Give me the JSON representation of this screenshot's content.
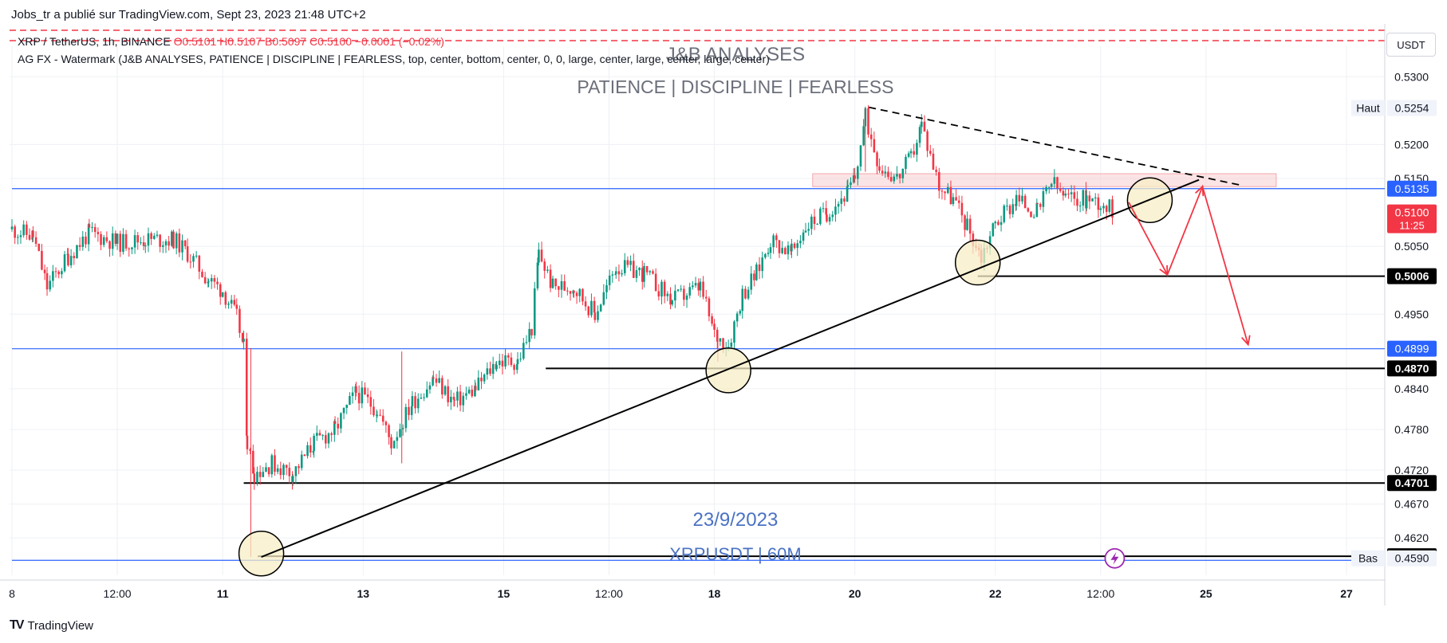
{
  "header": {
    "published": "Jobs_tr a publié sur TradingView.com, Sept 23, 2023 21:48 UTC+2",
    "symbol_line": "XRP / TetherUS, 1h, BINANCE",
    "ohlc": "O0.5101  H0.5107  B0.5097  C0.5100  −0.0001 (−0.02%)",
    "indicator_line": "AG FX - Watermark (J&B ANALYSES, PATIENCE  |  DISCIPLINE  |  FEARLESS, top, center, bottom, center, 0, 0, large, center, large, center, large, center)",
    "currency_button": "USDT"
  },
  "watermark": {
    "title": "J&B ANALYSES",
    "subtitle": "PATIENCE   |   DISCIPLINE   |   FEARLESS",
    "date": "23/9/2023",
    "pair": "XRPUSDT | 60M"
  },
  "footer": {
    "brand": "TradingView",
    "logo": "tradingview-logo-icon"
  },
  "colors": {
    "up": "#089981",
    "down": "#f23645",
    "blue_line": "#2962ff",
    "zone": "#f8cdd0",
    "circle": "#f7eec5",
    "arrow": "#f23645"
  },
  "chart_data": {
    "type": "candlestick",
    "symbol": "XRP / TetherUS",
    "timeframe": "1h",
    "exchange": "BINANCE",
    "ylim": [
      0.4565,
      0.5345
    ],
    "y_ticks": [
      0.53,
      0.52,
      0.515,
      0.505,
      0.495,
      0.484,
      0.478,
      0.472,
      0.467,
      0.462
    ],
    "x_ticks": [
      {
        "label": "8",
        "d": 8.0
      },
      {
        "label": "12:00",
        "d": 9.5
      },
      {
        "label": "11",
        "d": 11.0
      },
      {
        "label": "13",
        "d": 13.0
      },
      {
        "label": "15",
        "d": 15.0
      },
      {
        "label": "12:00",
        "d": 16.5
      },
      {
        "label": "18",
        "d": 18.0
      },
      {
        "label": "20",
        "d": 20.0
      },
      {
        "label": "22",
        "d": 22.0
      },
      {
        "label": "12:00",
        "d": 23.5
      },
      {
        "label": "25",
        "d": 25.0
      },
      {
        "label": "27",
        "d": 27.0
      }
    ],
    "path": [
      [
        8.0,
        0.5075
      ],
      [
        8.3,
        0.5065
      ],
      [
        8.5,
        0.499
      ],
      [
        8.8,
        0.5035
      ],
      [
        9.1,
        0.507
      ],
      [
        9.5,
        0.5055
      ],
      [
        9.9,
        0.506
      ],
      [
        10.3,
        0.506
      ],
      [
        10.5,
        0.504
      ],
      [
        10.8,
        0.5
      ],
      [
        11.0,
        0.4985
      ],
      [
        11.2,
        0.4945
      ],
      [
        11.3,
        0.49
      ],
      [
        11.35,
        0.476
      ],
      [
        11.45,
        0.4715
      ],
      [
        11.7,
        0.473
      ],
      [
        12.0,
        0.4715
      ],
      [
        12.3,
        0.476
      ],
      [
        12.6,
        0.478
      ],
      [
        12.9,
        0.4835
      ],
      [
        13.2,
        0.481
      ],
      [
        13.4,
        0.476
      ],
      [
        13.7,
        0.482
      ],
      [
        14.0,
        0.4855
      ],
      [
        14.3,
        0.482
      ],
      [
        14.6,
        0.484
      ],
      [
        14.9,
        0.488
      ],
      [
        15.2,
        0.488
      ],
      [
        15.4,
        0.493
      ],
      [
        15.5,
        0.504
      ],
      [
        15.7,
        0.499
      ],
      [
        16.0,
        0.499
      ],
      [
        16.3,
        0.495
      ],
      [
        16.6,
        0.502
      ],
      [
        17.0,
        0.501
      ],
      [
        17.4,
        0.497
      ],
      [
        17.8,
        0.499
      ],
      [
        18.0,
        0.492
      ],
      [
        18.2,
        0.4905
      ],
      [
        18.4,
        0.498
      ],
      [
        18.6,
        0.501
      ],
      [
        18.8,
        0.506
      ],
      [
        19.1,
        0.504
      ],
      [
        19.3,
        0.508
      ],
      [
        19.6,
        0.51
      ],
      [
        19.9,
        0.513
      ],
      [
        20.0,
        0.515
      ],
      [
        20.15,
        0.524
      ],
      [
        20.35,
        0.517
      ],
      [
        20.6,
        0.515
      ],
      [
        20.8,
        0.518
      ],
      [
        20.95,
        0.523
      ],
      [
        21.2,
        0.514
      ],
      [
        21.4,
        0.512
      ],
      [
        21.6,
        0.508
      ],
      [
        21.8,
        0.5035
      ],
      [
        22.0,
        0.5085
      ],
      [
        22.3,
        0.512
      ],
      [
        22.6,
        0.51
      ],
      [
        22.8,
        0.5145
      ],
      [
        23.0,
        0.512
      ],
      [
        23.3,
        0.512
      ],
      [
        23.5,
        0.5115
      ],
      [
        23.7,
        0.51
      ]
    ],
    "ref_candle": {
      "open": 0.5101,
      "high": 0.5107,
      "low": 0.5097,
      "close": 0.51
    },
    "price_labels": [
      {
        "value": 0.5254,
        "text": "0.5254",
        "tag": "Haut",
        "style": "high"
      },
      {
        "value": 0.5135,
        "text": "0.5135",
        "style": "blue"
      },
      {
        "value": 0.51,
        "text": "0.5100",
        "time": "11:25",
        "style": "last"
      },
      {
        "value": 0.5006,
        "text": "0.5006",
        "style": "black"
      },
      {
        "value": 0.4899,
        "text": "0.4899",
        "style": "blue"
      },
      {
        "value": 0.487,
        "text": "0.4870",
        "style": "black"
      },
      {
        "value": 0.4701,
        "text": "0.4701",
        "style": "black"
      },
      {
        "value": 0.4593,
        "text": "0.4593",
        "style": "black"
      },
      {
        "value": 0.459,
        "text": "0.4590",
        "tag": "Bas",
        "style": "low"
      }
    ],
    "horizontal_lines": [
      {
        "value": 0.5135,
        "from": 8.0,
        "color": "blue"
      },
      {
        "value": 0.4899,
        "from": 8.0,
        "color": "blue"
      },
      {
        "value": 0.4587,
        "from": 8.0,
        "color": "blue"
      },
      {
        "value": 0.5006,
        "from": 21.75,
        "color": "black"
      },
      {
        "value": 0.487,
        "from": 15.6,
        "color": "black"
      },
      {
        "value": 0.4701,
        "from": 11.3,
        "color": "black"
      },
      {
        "value": 0.4593,
        "from": 11.5,
        "color": "black"
      }
    ],
    "trendlines": [
      {
        "from": [
          11.55,
          0.4592
        ],
        "to": [
          24.9,
          0.5148
        ],
        "style": "solid"
      },
      {
        "from": [
          20.2,
          0.5255
        ],
        "to": [
          25.5,
          0.514
        ],
        "style": "dashed"
      }
    ],
    "zone": {
      "x": [
        19.4,
        26.0
      ],
      "y": [
        0.5138,
        0.5157
      ]
    },
    "circles": [
      [
        11.55,
        0.4597
      ],
      [
        18.2,
        0.4867
      ],
      [
        21.75,
        0.5026
      ],
      [
        24.2,
        0.5118
      ]
    ],
    "projections": [
      [
        [
          23.9,
          0.5115
        ],
        [
          24.45,
          0.5008
        ],
        [
          24.95,
          0.5138
        ],
        [
          25.6,
          0.4905
        ]
      ]
    ]
  }
}
